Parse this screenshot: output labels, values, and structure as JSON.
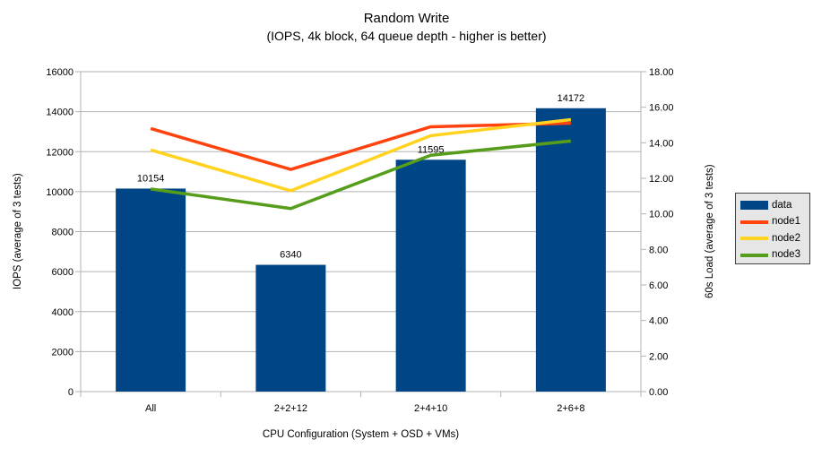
{
  "chart_data": {
    "type": "bar",
    "title": "Random Write",
    "subtitle": "(IOPS, 4k block, 64 queue depth - higher is better)",
    "categories": [
      "All",
      "2+2+12",
      "2+4+10",
      "2+6+8"
    ],
    "bar_series": {
      "name": "data",
      "axis": "left",
      "color": "#004586",
      "values": [
        10154,
        6340,
        11595,
        14172
      ],
      "data_labels": [
        "10154",
        "6340",
        "11595",
        "14172"
      ]
    },
    "line_series": [
      {
        "name": "node1",
        "axis": "right",
        "color": "#ff420e",
        "values": [
          14.8,
          12.5,
          14.9,
          15.1
        ]
      },
      {
        "name": "node2",
        "axis": "right",
        "color": "#ffd320",
        "values": [
          13.6,
          11.3,
          14.4,
          15.3
        ]
      },
      {
        "name": "node3",
        "axis": "right",
        "color": "#579d1c",
        "values": [
          11.4,
          10.3,
          13.3,
          14.1
        ]
      }
    ],
    "axes": {
      "left": {
        "title": "IOPS (average of 3 tests)",
        "min": 0,
        "max": 16000,
        "step": 2000,
        "tick_labels": [
          "0",
          "2000",
          "4000",
          "6000",
          "8000",
          "10000",
          "12000",
          "14000",
          "16000"
        ]
      },
      "right": {
        "title": "60s Load (average of 3 tests)",
        "min": 0,
        "max": 18,
        "step": 2,
        "tick_labels": [
          "0.00",
          "2.00",
          "4.00",
          "6.00",
          "8.00",
          "10.00",
          "12.00",
          "14.00",
          "16.00",
          "18.00"
        ]
      },
      "x": {
        "title": "CPU Configuration (System + OSD + VMs)"
      }
    },
    "legend": {
      "position": "right",
      "entries": [
        {
          "label": "data",
          "color": "#004586",
          "type": "bar"
        },
        {
          "label": "node1",
          "color": "#ff420e",
          "type": "line"
        },
        {
          "label": "node2",
          "color": "#ffd320",
          "type": "line"
        },
        {
          "label": "node3",
          "color": "#579d1c",
          "type": "line"
        }
      ]
    },
    "grid": {
      "horizontal": true,
      "vertical": false,
      "color": "#b3b3b3"
    },
    "layout_hint": {
      "legend_position": "right",
      "background": "#ffffff"
    }
  }
}
